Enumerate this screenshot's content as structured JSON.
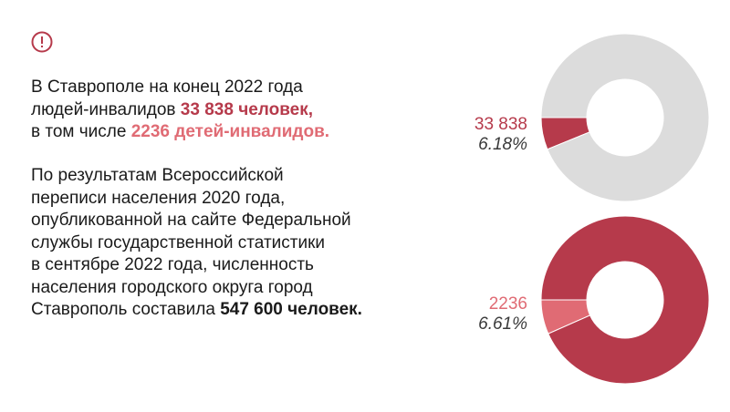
{
  "text": {
    "p1_line1": "В Ставрополе на конец 2022 года",
    "p1_line2_prefix": "людей-инвалидов ",
    "p1_line2_highlight": "33 838 человек,",
    "p1_line3_prefix": "в том числе ",
    "p1_line3_highlight": "2236 детей-инвалидов.",
    "p2_lines": [
      "По результатам Всероссийской",
      "переписи населения 2020 года,",
      "опубликованной на сайте Федеральной",
      "службы государственной статистики",
      "в сентябре 2022 года, численность",
      "населения городского округа город"
    ],
    "p2_last_prefix": "Ставрополь составила ",
    "p2_last_highlight": "547 600 человек."
  },
  "icons": {
    "alert": "alert-circle-icon"
  },
  "colors": {
    "dark_red": "#b63a4b",
    "light_red": "#e06b74",
    "grey": "#dcdcdc",
    "white": "#ffffff"
  },
  "chart_data": [
    {
      "type": "pie",
      "label_value": "33 838",
      "label_percent": "6.18%",
      "slices": [
        {
          "value": 6.18,
          "color": "#b63a4b"
        },
        {
          "value": 93.82,
          "color": "#dcdcdc"
        }
      ]
    },
    {
      "type": "pie",
      "label_value": "2236",
      "label_percent": "6.61%",
      "slices": [
        {
          "value": 6.61,
          "color": "#e06b74"
        },
        {
          "value": 93.39,
          "color": "#b63a4b"
        }
      ]
    }
  ]
}
